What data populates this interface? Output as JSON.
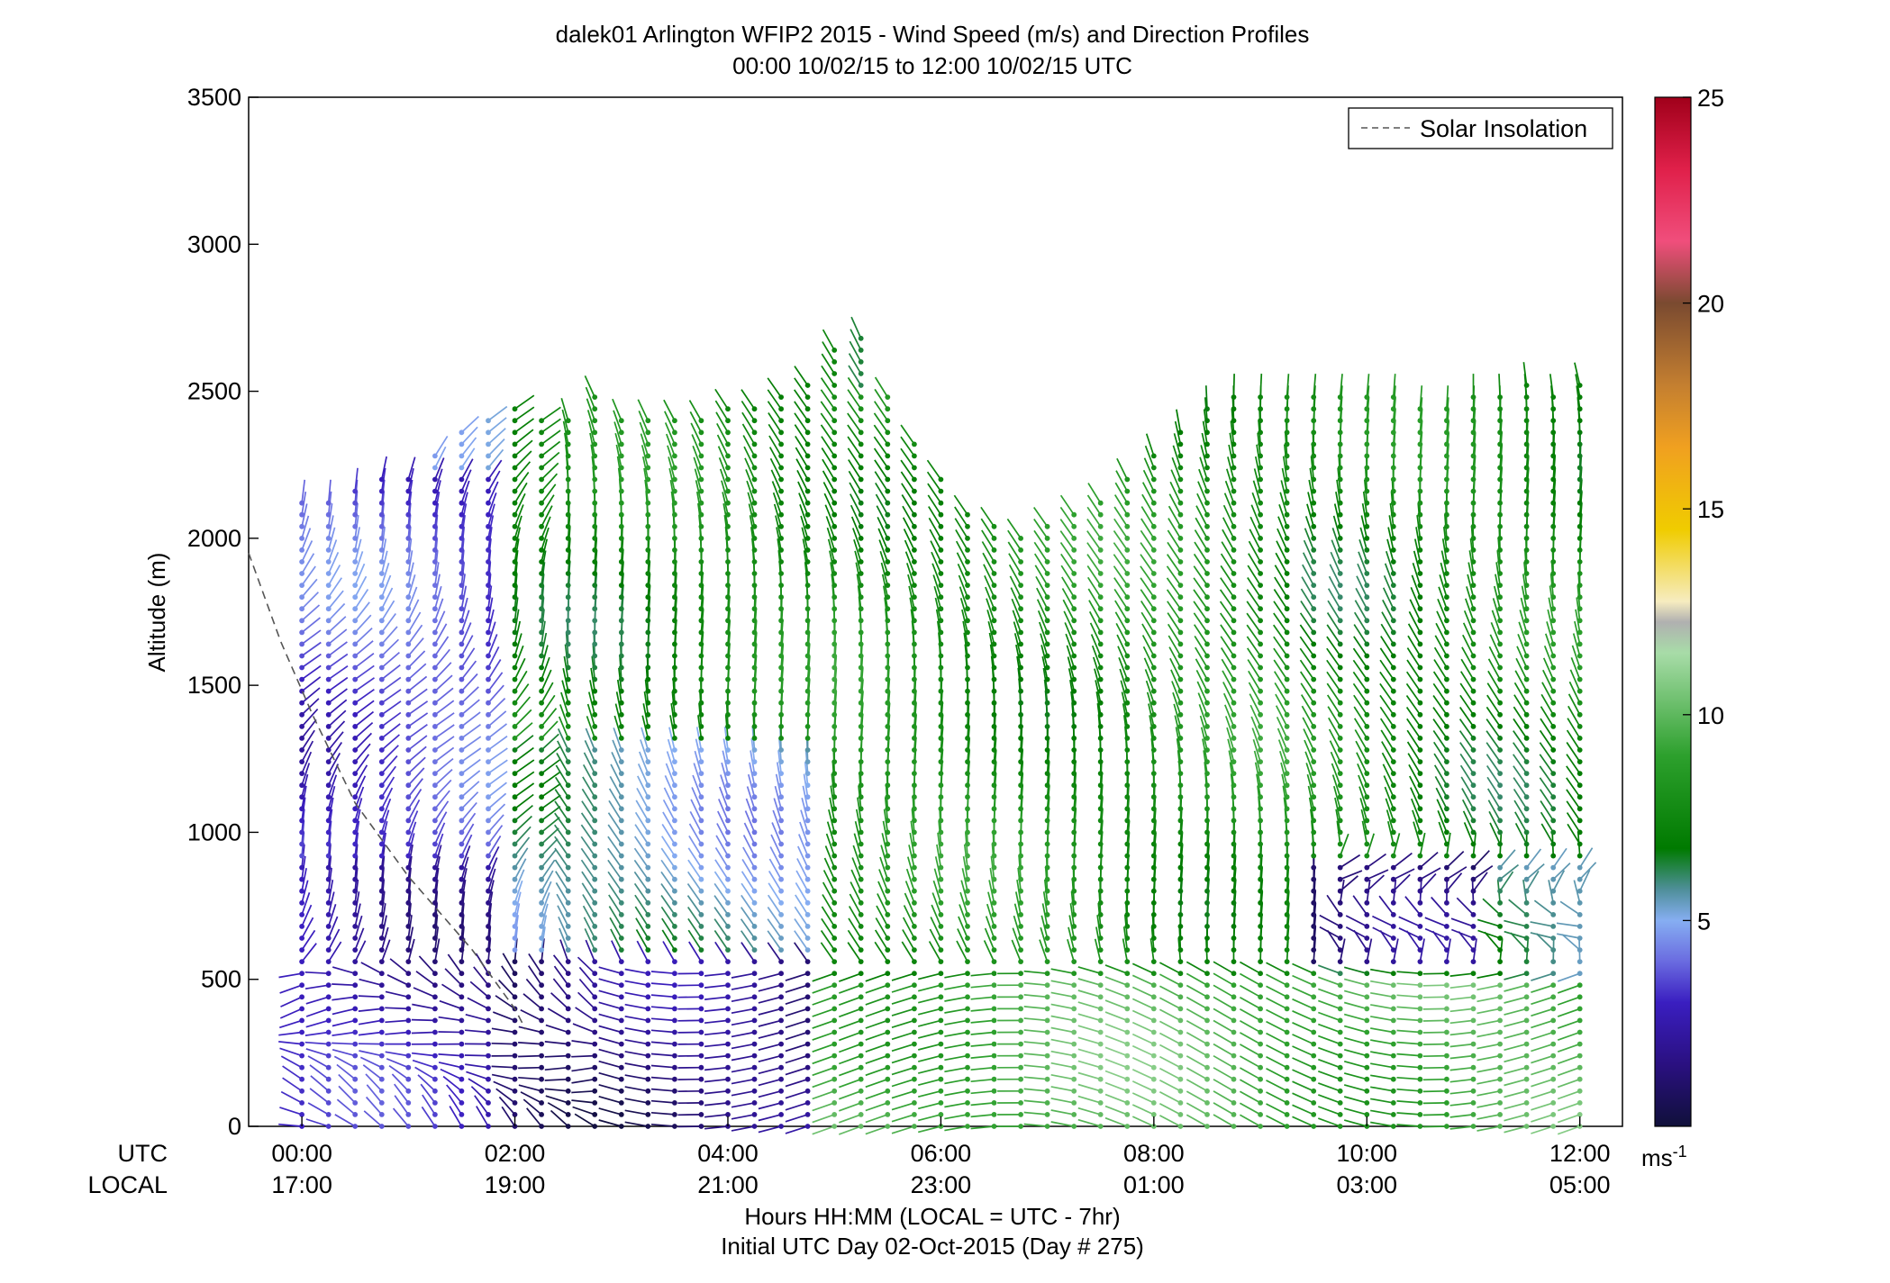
{
  "title_line1": "dalek01 Arlington WFIP2 2015 - Wind Speed (m/s) and Direction Profiles",
  "title_line2": "00:00 10/02/15 to 12:00 10/02/15  UTC",
  "row_labels": {
    "utc": "UTC",
    "local": "LOCAL"
  },
  "xlabel_line1": "Hours HH:MM  (LOCAL = UTC - 7hr)",
  "xlabel_line2": "Initial UTC Day 02-Oct-2015 (Day # 275)",
  "legend_label": "Solar Insolation",
  "colorbar_unit": "ms",
  "colorbar_unit_exp": "-1",
  "chart_data": {
    "type": "scatter",
    "title": "dalek01 Arlington WFIP2 2015 - Wind Speed (m/s) and Direction Profiles",
    "ylabel": "Altitude (m)",
    "xlim_hours": [
      -0.5,
      12.4
    ],
    "ylim": [
      0,
      3500
    ],
    "yticks": [
      0,
      500,
      1000,
      1500,
      2000,
      2500,
      3000,
      3500
    ],
    "xtick_hours": [
      0,
      2,
      4,
      6,
      8,
      10,
      12
    ],
    "xticks_utc": [
      "00:00",
      "02:00",
      "04:00",
      "06:00",
      "08:00",
      "10:00",
      "12:00"
    ],
    "xticks_local": [
      "17:00",
      "19:00",
      "21:00",
      "23:00",
      "01:00",
      "03:00",
      "05:00"
    ],
    "colorbar": {
      "label": "ms-1",
      "ticks": [
        5,
        10,
        15,
        20,
        25
      ],
      "range": [
        0,
        25
      ]
    },
    "series": [
      {
        "name": "Solar Insolation",
        "style": "dashed",
        "color": "#555555"
      }
    ],
    "solar_insolation": {
      "x_hours": [
        -0.5,
        -0.2,
        0.1,
        0.5,
        1.0,
        1.6,
        2.0,
        2.1
      ],
      "y": [
        1950,
        1650,
        1400,
        1100,
        850,
        600,
        400,
        330
      ]
    },
    "profile_times_hours": [
      0,
      0.25,
      0.5,
      0.75,
      1.0,
      1.25,
      1.5,
      1.75,
      2.0,
      2.25,
      2.5,
      2.75,
      3.0,
      3.25,
      3.5,
      3.75,
      4.0,
      4.25,
      4.5,
      4.75,
      5.0,
      5.25,
      5.5,
      5.75,
      6.0,
      6.25,
      6.5,
      6.75,
      7.0,
      7.25,
      7.5,
      7.75,
      8.0,
      8.25,
      8.5,
      8.75,
      9.0,
      9.25,
      9.5,
      9.75,
      10.0,
      10.25,
      10.5,
      10.75,
      11.0,
      11.25,
      11.5,
      11.75,
      12.0
    ],
    "profile_tops_m": [
      2150,
      2150,
      2170,
      2200,
      2230,
      2300,
      2360,
      2420,
      2450,
      2420,
      2400,
      2500,
      2430,
      2400,
      2420,
      2430,
      2440,
      2460,
      2500,
      2550,
      2650,
      2700,
      2500,
      2350,
      2200,
      2100,
      2050,
      2000,
      2050,
      2100,
      2150,
      2200,
      2300,
      2380,
      2450,
      2480,
      2500,
      2500,
      2500,
      2500,
      2500,
      2480,
      2470,
      2460,
      2480,
      2500,
      2520,
      2480,
      2540
    ],
    "speed_summary": [
      {
        "hours": [
          0,
          2
        ],
        "altitude_m": [
          0,
          900
        ],
        "speed_ms": 2.5
      },
      {
        "hours": [
          0,
          2
        ],
        "altitude_m": [
          900,
          2200
        ],
        "speed_ms": 3.5
      },
      {
        "hours": [
          2,
          5
        ],
        "altitude_m": [
          0,
          600
        ],
        "speed_ms": 1.5
      },
      {
        "hours": [
          2,
          5
        ],
        "altitude_m": [
          600,
          1300
        ],
        "speed_ms": 5.5
      },
      {
        "hours": [
          2,
          5
        ],
        "altitude_m": [
          1300,
          2700
        ],
        "speed_ms": 7.5
      },
      {
        "hours": [
          5,
          12
        ],
        "altitude_m": [
          0,
          500
        ],
        "speed_ms": 9.5
      },
      {
        "hours": [
          5,
          9.5
        ],
        "altitude_m": [
          500,
          2500
        ],
        "speed_ms": 8.0
      },
      {
        "hours": [
          9.5,
          11
        ],
        "altitude_m": [
          550,
          900
        ],
        "speed_ms": 1.0
      },
      {
        "hours": [
          9.5,
          12
        ],
        "altitude_m": [
          900,
          2550
        ],
        "speed_ms": 7.5
      }
    ]
  }
}
